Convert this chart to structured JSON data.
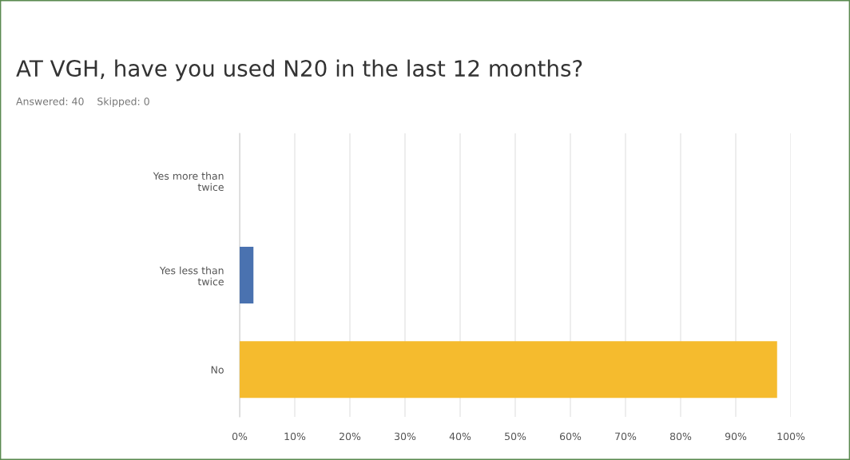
{
  "chart_data": {
    "type": "bar",
    "orientation": "horizontal",
    "title": "AT VGH, have you used N20 in the last 12 months?",
    "subtitle": "Answered: 40    Skipped: 0",
    "categories": [
      "Yes more than\ntwice",
      "Yes less than\ntwice",
      "No"
    ],
    "values": [
      0,
      2.5,
      97.5
    ],
    "colors": [
      null,
      "#4a72b0",
      "#f5bb2e"
    ],
    "xlim": [
      0,
      100
    ],
    "xticks": [
      {
        "value": 0,
        "label": "0%"
      },
      {
        "value": 10,
        "label": "10%"
      },
      {
        "value": 20,
        "label": "20%"
      },
      {
        "value": 30,
        "label": "30%"
      },
      {
        "value": 40,
        "label": "40%"
      },
      {
        "value": 50,
        "label": "50%"
      },
      {
        "value": 60,
        "label": "60%"
      },
      {
        "value": 70,
        "label": "70%"
      },
      {
        "value": 80,
        "label": "80%"
      },
      {
        "value": 90,
        "label": "90%"
      },
      {
        "value": 100,
        "label": "100%"
      }
    ],
    "grid": "x",
    "legend": false
  }
}
